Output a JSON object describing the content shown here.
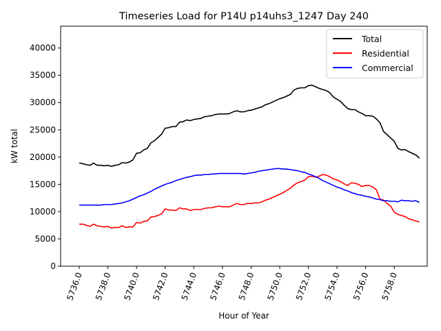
{
  "chart_data": {
    "type": "line",
    "title": "Timeseries Load for P14U p14uhs3_1247  Day 240",
    "xlabel": "Hour of Year",
    "ylabel": "kW total",
    "xlim": [
      5734.7,
      5760.3
    ],
    "ylim": [
      0,
      44000
    ],
    "xticks": [
      5736,
      5738,
      5740,
      5742,
      5744,
      5746,
      5748,
      5750,
      5752,
      5754,
      5756,
      5758
    ],
    "xtick_labels": [
      "5736.0",
      "5738.0",
      "5740.0",
      "5742.0",
      "5744.0",
      "5746.0",
      "5748.0",
      "5750.0",
      "5752.0",
      "5754.0",
      "5756.0",
      "5758.0"
    ],
    "yticks": [
      0,
      5000,
      10000,
      15000,
      20000,
      25000,
      30000,
      35000,
      40000
    ],
    "ytick_labels": [
      "0",
      "5000",
      "10000",
      "15000",
      "20000",
      "25000",
      "30000",
      "35000",
      "40000"
    ],
    "legend_position": "top-right",
    "x": [
      5736.0,
      5736.25,
      5736.5,
      5736.75,
      5737.0,
      5737.25,
      5737.5,
      5737.75,
      5738.0,
      5738.25,
      5738.5,
      5738.75,
      5739.0,
      5739.25,
      5739.5,
      5739.75,
      5740.0,
      5740.25,
      5740.5,
      5740.75,
      5741.0,
      5741.25,
      5741.5,
      5741.75,
      5742.0,
      5742.25,
      5742.5,
      5742.75,
      5743.0,
      5743.25,
      5743.5,
      5743.75,
      5744.0,
      5744.25,
      5744.5,
      5744.75,
      5745.0,
      5745.25,
      5745.5,
      5745.75,
      5746.0,
      5746.25,
      5746.5,
      5746.75,
      5747.0,
      5747.25,
      5747.5,
      5747.75,
      5748.0,
      5748.25,
      5748.5,
      5748.75,
      5749.0,
      5749.25,
      5749.5,
      5749.75,
      5750.0,
      5750.25,
      5750.5,
      5750.75,
      5751.0,
      5751.25,
      5751.5,
      5751.75,
      5752.0,
      5752.25,
      5752.5,
      5752.75,
      5753.0,
      5753.25,
      5753.5,
      5753.75,
      5754.0,
      5754.25,
      5754.5,
      5754.75,
      5755.0,
      5755.25,
      5755.5,
      5755.75,
      5756.0,
      5756.25,
      5756.5,
      5756.75,
      5757.0,
      5757.25,
      5757.5,
      5757.75,
      5758.0,
      5758.25,
      5758.5,
      5758.75,
      5759.0,
      5759.25,
      5759.5,
      5759.75
    ],
    "series": [
      {
        "name": "Total",
        "color": "#000000",
        "values": [
          18900,
          18800,
          18600,
          18500,
          18900,
          18500,
          18500,
          18400,
          18500,
          18300,
          18500,
          18600,
          19000,
          18900,
          19100,
          19500,
          20700,
          20800,
          21300,
          21600,
          22600,
          23000,
          23600,
          24200,
          25300,
          25400,
          25600,
          25600,
          26400,
          26500,
          26800,
          26700,
          26900,
          27000,
          27100,
          27400,
          27500,
          27600,
          27800,
          27900,
          27900,
          27900,
          28000,
          28300,
          28500,
          28300,
          28300,
          28500,
          28600,
          28800,
          29000,
          29200,
          29600,
          29800,
          30100,
          30400,
          30700,
          30900,
          31200,
          31500,
          32300,
          32600,
          32700,
          32700,
          33100,
          33200,
          32900,
          32600,
          32400,
          32200,
          31800,
          31000,
          30600,
          30200,
          29500,
          28900,
          28700,
          28700,
          28300,
          28000,
          27600,
          27600,
          27500,
          27000,
          26300,
          24700,
          24100,
          23500,
          22900,
          21600,
          21300,
          21400,
          21000,
          20700,
          20400,
          19800
        ]
      },
      {
        "name": "Residential",
        "color": "#ff0000",
        "values": [
          7700,
          7700,
          7500,
          7300,
          7700,
          7400,
          7300,
          7200,
          7300,
          7000,
          7100,
          7100,
          7400,
          7100,
          7200,
          7200,
          8000,
          7900,
          8200,
          8300,
          9000,
          9100,
          9300,
          9600,
          10500,
          10300,
          10300,
          10200,
          10700,
          10500,
          10500,
          10200,
          10400,
          10400,
          10400,
          10600,
          10700,
          10700,
          10900,
          11000,
          10900,
          10900,
          10900,
          11200,
          11500,
          11300,
          11300,
          11500,
          11500,
          11600,
          11600,
          11800,
          12100,
          12300,
          12600,
          12900,
          13200,
          13500,
          13900,
          14300,
          14900,
          15300,
          15500,
          15800,
          16400,
          16500,
          16300,
          16500,
          16800,
          16700,
          16400,
          16000,
          15800,
          15500,
          15100,
          14800,
          15300,
          15200,
          15000,
          14600,
          14800,
          14800,
          14500,
          14000,
          12300,
          12100,
          11500,
          11000,
          9900,
          9500,
          9300,
          9100,
          8700,
          8500,
          8300,
          8100
        ]
      },
      {
        "name": "Commercial",
        "color": "#0000ff",
        "values": [
          11200,
          11200,
          11200,
          11200,
          11200,
          11200,
          11200,
          11300,
          11300,
          11300,
          11400,
          11500,
          11600,
          11800,
          12000,
          12300,
          12600,
          12900,
          13100,
          13400,
          13700,
          14100,
          14400,
          14700,
          15000,
          15200,
          15400,
          15700,
          15900,
          16100,
          16300,
          16400,
          16600,
          16700,
          16700,
          16800,
          16800,
          16900,
          16900,
          17000,
          17000,
          17000,
          17000,
          17000,
          17000,
          17000,
          16900,
          17000,
          17100,
          17200,
          17400,
          17500,
          17600,
          17700,
          17800,
          17900,
          17900,
          17800,
          17800,
          17700,
          17600,
          17500,
          17300,
          17200,
          16900,
          16700,
          16400,
          16100,
          15700,
          15400,
          15100,
          14800,
          14500,
          14300,
          14000,
          13800,
          13500,
          13300,
          13100,
          13000,
          12800,
          12700,
          12500,
          12300,
          12200,
          12000,
          12000,
          11900,
          11900,
          11800,
          12100,
          12000,
          12000,
          11900,
          12000,
          11700
        ]
      }
    ]
  }
}
